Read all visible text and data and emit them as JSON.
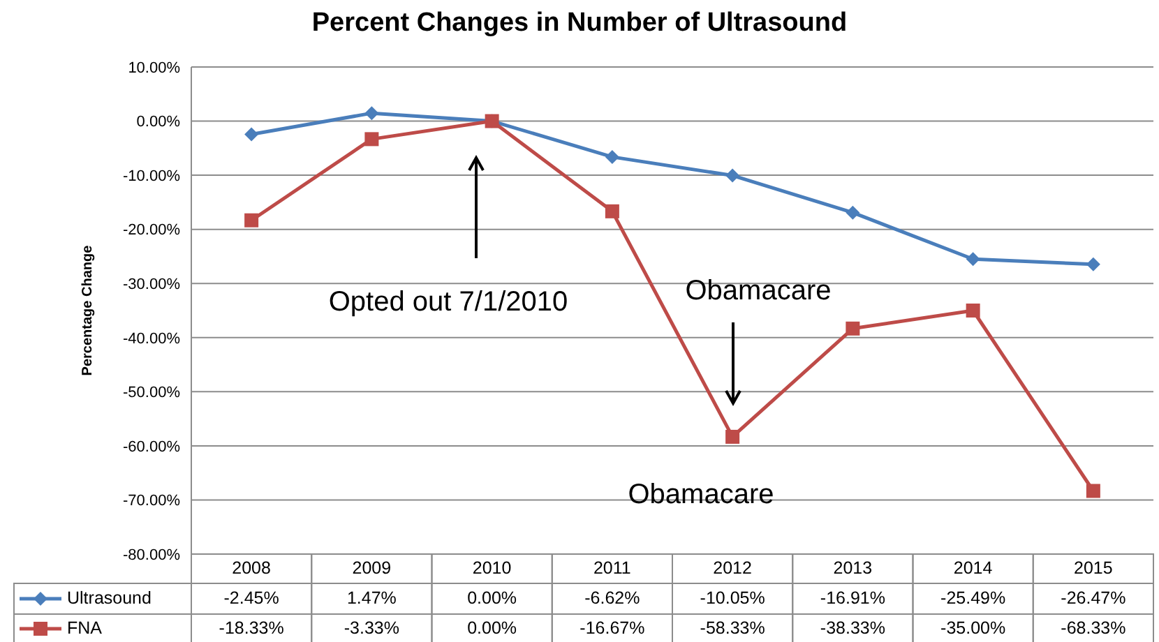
{
  "chart_data": {
    "type": "line",
    "title": "Percent Changes in Number of Ultrasound",
    "ylabel": "Percentage Change",
    "categories": [
      "2008",
      "2009",
      "2010",
      "2011",
      "2012",
      "2013",
      "2014",
      "2015"
    ],
    "series": [
      {
        "name": "Ultrasound",
        "color": "#4a7ebb",
        "marker": "diamond",
        "values": [
          -2.45,
          1.47,
          0.0,
          -6.62,
          -10.05,
          -16.91,
          -25.49,
          -26.47
        ],
        "value_labels": [
          "-2.45%",
          "1.47%",
          "0.00%",
          "-6.62%",
          "-10.05%",
          "-16.91%",
          "-25.49%",
          "-26.47%"
        ]
      },
      {
        "name": "FNA",
        "color": "#be4b48",
        "marker": "square",
        "values": [
          -18.33,
          -3.33,
          0.0,
          -16.67,
          -58.33,
          -38.33,
          -35.0,
          -68.33
        ],
        "value_labels": [
          "-18.33%",
          "-3.33%",
          "0.00%",
          "-16.67%",
          "-58.33%",
          "-38.33%",
          "-35.00%",
          "-68.33%"
        ]
      }
    ],
    "ylim": [
      -80,
      10
    ],
    "yticks": [
      {
        "value": 10,
        "label": "10.00%"
      },
      {
        "value": 0,
        "label": "0.00%"
      },
      {
        "value": -10,
        "label": "-10.00%"
      },
      {
        "value": -20,
        "label": "-20.00%"
      },
      {
        "value": -30,
        "label": "-30.00%"
      },
      {
        "value": -40,
        "label": "-40.00%"
      },
      {
        "value": -50,
        "label": "-50.00%"
      },
      {
        "value": -60,
        "label": "-60.00%"
      },
      {
        "value": -70,
        "label": "-70.00%"
      },
      {
        "value": -80,
        "label": "-80.00%"
      }
    ],
    "grid": "y",
    "legend": "bottom",
    "annotations": [
      "Opted out 7/1/2010",
      "Obamacare",
      "Obamacare"
    ]
  }
}
